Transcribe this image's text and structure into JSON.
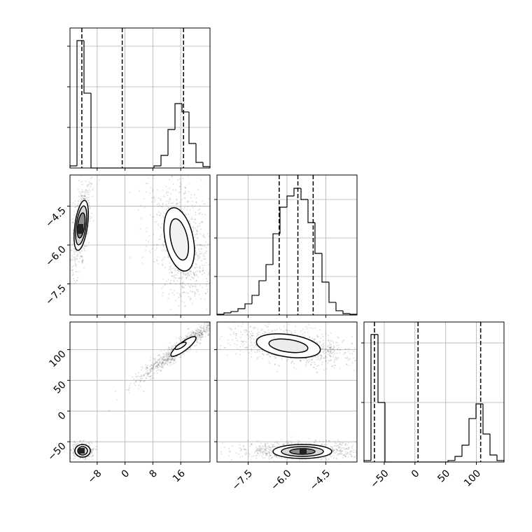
{
  "chart_data": {
    "type": "corner",
    "grid": true,
    "parameters": [
      {
        "lim": [
          -15.8,
          24.4
        ],
        "ticks": [
          {
            "value": -8,
            "label": "−8"
          },
          0,
          8,
          16
        ]
      },
      {
        "lim": [
          -8.7,
          -3.3
        ],
        "ticks": [
          {
            "value": -7.5,
            "label": "−7.5"
          },
          {
            "value": -6,
            "label": "−6.0"
          },
          {
            "value": -4.5,
            "label": "−4.5"
          }
        ]
      },
      {
        "lim": [
          -83,
          145
        ],
        "ticks": [
          {
            "value": -50,
            "label": "−50"
          },
          0,
          50,
          100
        ]
      }
    ],
    "histograms": [
      {
        "bins": [
          -15.8,
          -13.79,
          -11.78,
          -9.77,
          -7.76,
          -5.75,
          -3.74,
          -1.73,
          0.28,
          2.29,
          4.3,
          6.31,
          8.32,
          10.33,
          12.34,
          14.35,
          16.36,
          18.37,
          20.38,
          22.39,
          24.4
        ],
        "counts": [
          26,
          1569,
          922,
          0,
          0,
          0,
          0,
          0,
          0,
          0,
          0,
          0,
          26,
          155,
          474,
          793,
          690,
          302,
          69,
          17
        ],
        "ylim": [
          0,
          1724
        ],
        "yticks": [
          500,
          1000,
          1500
        ],
        "quantiles": [
          -12.4,
          -0.8,
          16.8
        ]
      },
      {
        "bins": [
          -8.7,
          -8.43,
          -8.16,
          -7.89,
          -7.62,
          -7.35,
          -7.08,
          -6.81,
          -6.54,
          -6.27,
          -6.0,
          -5.73,
          -5.46,
          -5.19,
          -4.92,
          -4.65,
          -4.38,
          -4.11,
          -3.84,
          -3.57,
          -3.3
        ],
        "counts": [
          9,
          27,
          45,
          82,
          145,
          255,
          445,
          655,
          1055,
          1400,
          1545,
          1645,
          1500,
          1200,
          800,
          427,
          164,
          55,
          18,
          9
        ],
        "ylim": [
          0,
          1818
        ],
        "yticks": [
          500,
          1000,
          1500
        ],
        "quantiles": [
          -6.3,
          -5.58,
          -4.99
        ]
      },
      {
        "bins": [
          -83,
          -71.6,
          -60.2,
          -48.8,
          -37.4,
          -26,
          -14.6,
          -3.2,
          8.2,
          19.6,
          31,
          42.4,
          53.8,
          65.2,
          76.6,
          88,
          99.4,
          110.8,
          122.2,
          133.6,
          145
        ],
        "counts": [
          12,
          1071,
          500,
          0,
          0,
          0,
          0,
          0,
          0,
          0,
          0,
          0,
          12,
          47,
          141,
          365,
          488,
          235,
          59,
          12
        ],
        "ylim": [
          0,
          1176
        ],
        "yticks": [
          500,
          1000
        ],
        "quantiles": [
          -66,
          5,
          107
        ]
      }
    ]
  }
}
